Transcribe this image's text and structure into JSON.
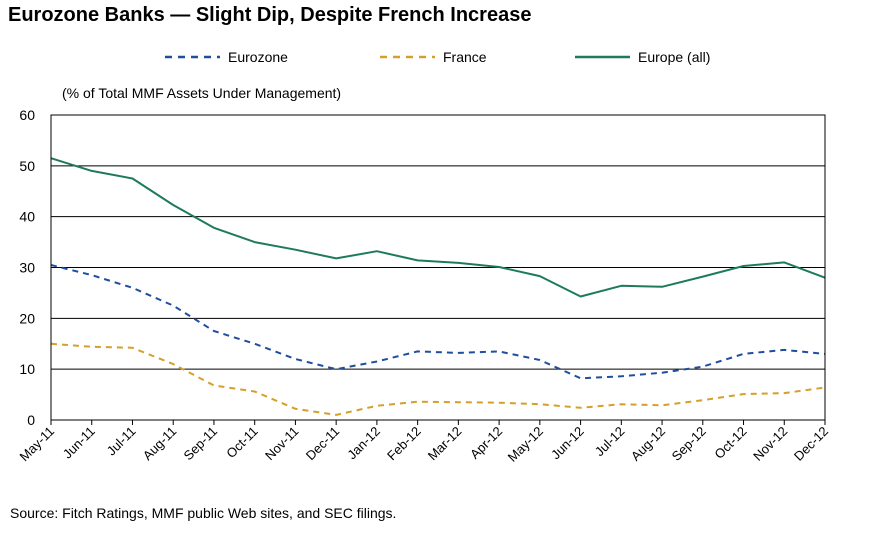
{
  "title": "Eurozone Banks — Slight Dip, Despite French Increase",
  "source": "Source: Fitch Ratings, MMF public Web sites, and SEC filings.",
  "chart_data": {
    "type": "line",
    "title": "Eurozone Banks — Slight Dip, Despite French Increase",
    "ylabel": "(% of Total MMF Assets Under Management)",
    "xlabel": "",
    "ylim": [
      0,
      60
    ],
    "yticks": [
      0,
      10,
      20,
      30,
      40,
      50,
      60
    ],
    "grid": "horizontal",
    "legend_position": "top",
    "categories": [
      "May-11",
      "Jun-11",
      "Jul-11",
      "Aug-11",
      "Sep-11",
      "Oct-11",
      "Nov-11",
      "Dec-11",
      "Jan-12",
      "Feb-12",
      "Mar-12",
      "Apr-12",
      "May-12",
      "Jun-12",
      "Jul-12",
      "Aug-12",
      "Sep-12",
      "Oct-12",
      "Nov-12",
      "Dec-12"
    ],
    "series": [
      {
        "name": "Eurozone",
        "color": "#1f4e9e",
        "style": "dashed",
        "values": [
          30.5,
          28.5,
          26,
          22.5,
          17.5,
          15,
          12,
          10,
          11.5,
          13.5,
          13.2,
          13.5,
          11.8,
          8.2,
          8.6,
          9.3,
          10.5,
          13,
          13.8,
          13
        ]
      },
      {
        "name": "France",
        "color": "#d4a02a",
        "style": "dashed",
        "values": [
          15,
          14.4,
          14.2,
          11,
          6.8,
          5.6,
          2.2,
          1,
          2.8,
          3.6,
          3.5,
          3.4,
          3.1,
          2.4,
          3.1,
          2.9,
          3.9,
          5.1,
          5.3,
          6.4
        ]
      },
      {
        "name": "Europe (all)",
        "color": "#1e7a5e",
        "style": "solid",
        "values": [
          51.5,
          49,
          47.5,
          42.3,
          37.8,
          35,
          33.5,
          31.8,
          33.2,
          31.4,
          30.9,
          30.1,
          28.3,
          24.3,
          26.4,
          26.2,
          28.2,
          30.3,
          31,
          28
        ]
      }
    ]
  }
}
